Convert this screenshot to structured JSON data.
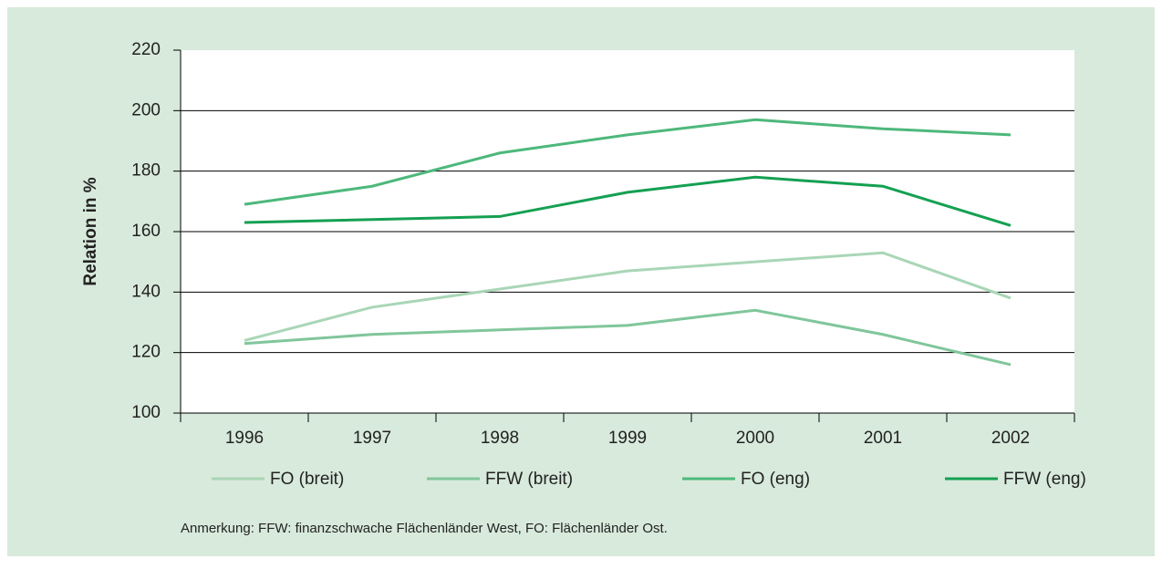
{
  "chart_data": {
    "type": "line",
    "y_label": "Relation in %",
    "categories": [
      "1996",
      "1997",
      "1998",
      "1999",
      "2000",
      "2001",
      "2002"
    ],
    "series": [
      {
        "name": "FO (breit)",
        "color": "#a9d6b6",
        "values": [
          124,
          135,
          141,
          147,
          150,
          153,
          138
        ]
      },
      {
        "name": "FFW (breit)",
        "color": "#80c69b",
        "values": [
          123,
          126,
          127.5,
          129,
          134,
          126,
          116
        ]
      },
      {
        "name": "FO (eng)",
        "color": "#4db87b",
        "values": [
          169,
          175,
          186,
          192,
          197,
          194,
          192
        ]
      },
      {
        "name": "FFW (eng)",
        "color": "#14a052",
        "values": [
          163,
          164,
          165,
          173,
          178,
          175,
          162
        ]
      }
    ],
    "ylim": [
      100,
      220
    ],
    "yticks": [
      100,
      120,
      140,
      160,
      180,
      200,
      220
    ],
    "grid": true,
    "note": "Anmerkung: FFW: finanzschwache Flächenländer West, FO: Flächenländer Ost."
  }
}
